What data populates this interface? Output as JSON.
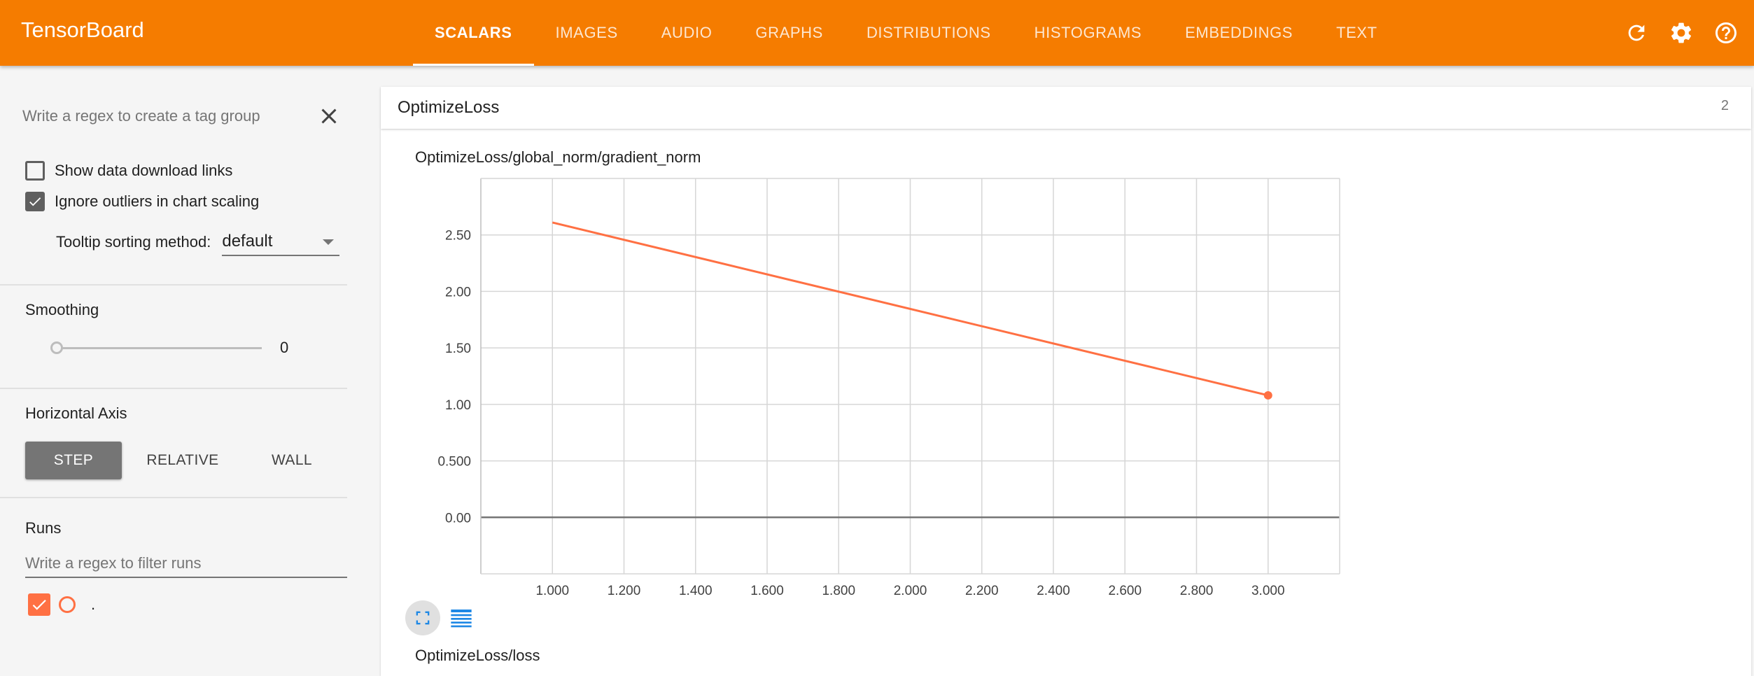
{
  "header": {
    "brand": "TensorBoard",
    "tabs": [
      {
        "label": "SCALARS",
        "active": true
      },
      {
        "label": "IMAGES"
      },
      {
        "label": "AUDIO"
      },
      {
        "label": "GRAPHS"
      },
      {
        "label": "DISTRIBUTIONS"
      },
      {
        "label": "HISTOGRAMS"
      },
      {
        "label": "EMBEDDINGS"
      },
      {
        "label": "TEXT"
      }
    ],
    "icons": [
      "refresh-icon",
      "settings-icon",
      "help-icon"
    ]
  },
  "sidebar": {
    "tag_group_placeholder": "Write a regex to create a tag group",
    "show_download_links": {
      "label": "Show data download links",
      "checked": false
    },
    "ignore_outliers": {
      "label": "Ignore outliers in chart scaling",
      "checked": true
    },
    "tooltip_sorting": {
      "label": "Tooltip sorting method:",
      "value": "default"
    },
    "smoothing": {
      "title": "Smoothing",
      "value": "0"
    },
    "horizontal_axis": {
      "title": "Horizontal Axis",
      "options": [
        "STEP",
        "RELATIVE",
        "WALL"
      ],
      "selected": "STEP"
    },
    "runs": {
      "title": "Runs",
      "filter_placeholder": "Write a regex to filter runs",
      "items": [
        {
          "label": ".",
          "checked": true,
          "color": "#ff7043"
        }
      ]
    }
  },
  "main": {
    "group": {
      "title": "OptimizeLoss",
      "count": "2"
    },
    "chart_titles": [
      "OptimizeLoss/global_norm/gradient_norm",
      "OptimizeLoss/loss"
    ]
  },
  "colors": {
    "accent": "#f57c00",
    "series": "#ff7043"
  },
  "chart_data": {
    "type": "line",
    "title": "OptimizeLoss/global_norm/gradient_norm",
    "xlabel": "",
    "ylabel": "",
    "xlim": [
      0.8,
      3.2
    ],
    "ylim": [
      -0.5,
      3.0
    ],
    "x_ticks": [
      "1.000",
      "1.200",
      "1.400",
      "1.600",
      "1.800",
      "2.000",
      "2.200",
      "2.400",
      "2.600",
      "2.800",
      "3.000"
    ],
    "y_ticks": [
      "0.00",
      "0.500",
      "1.00",
      "1.50",
      "2.00",
      "2.50"
    ],
    "grid": true,
    "series": [
      {
        "color": "#ff7043",
        "x": [
          1,
          3
        ],
        "y": [
          2.61,
          1.08
        ]
      }
    ]
  }
}
